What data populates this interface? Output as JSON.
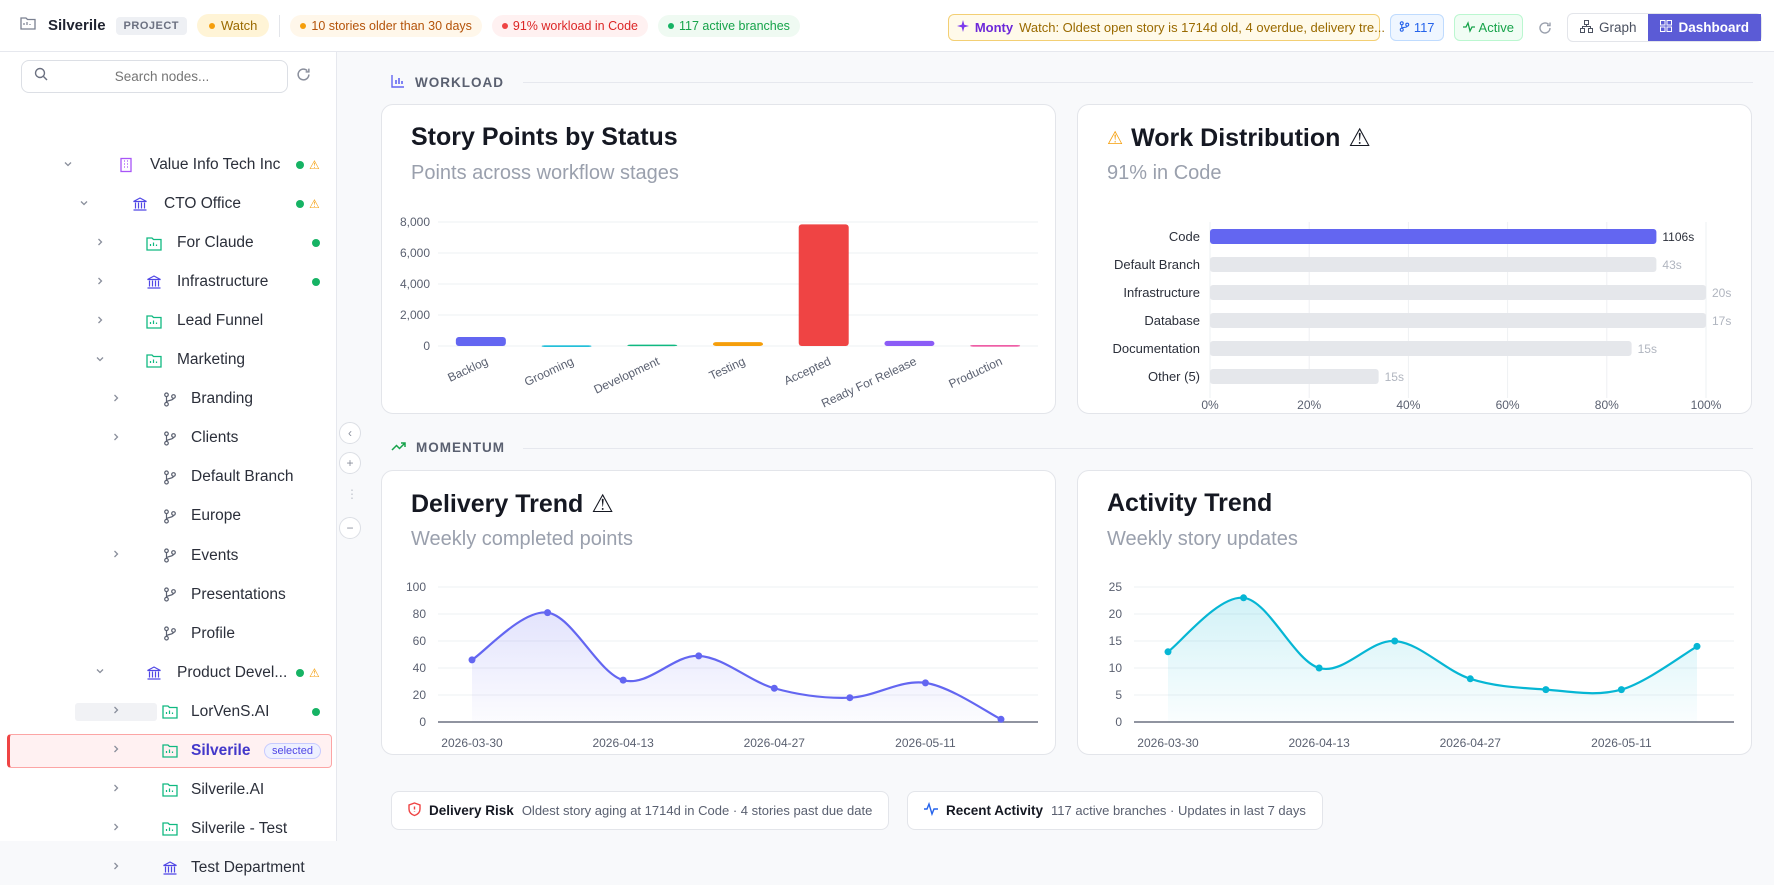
{
  "topbar": {
    "project_name": "Silverile",
    "project_badge": "PROJECT",
    "watch_label": "Watch",
    "alerts": [
      {
        "text": "10 stories older than 30 days"
      },
      {
        "text": "91% workload in Code"
      },
      {
        "text": "117 active branches"
      }
    ],
    "monty_name": "Monty",
    "monty_text": "Watch: Oldest open story is 1714d old, 4 overdue, delivery tre...",
    "branch_count": "117",
    "status": "Active",
    "graph_label": "Graph",
    "dashboard_label": "Dashboard"
  },
  "sidebar": {
    "search_placeholder": "Search nodes...",
    "nodes": [
      {
        "label": "Value Info Tech Inc",
        "level": 0,
        "chev": "down",
        "icon": "building-icon",
        "status": "green-warn"
      },
      {
        "label": "CTO Office",
        "level": 1,
        "chev": "down",
        "icon": "bank-icon",
        "status": "green-warn"
      },
      {
        "label": "For Claude",
        "level": 2,
        "chev": "right",
        "icon": "project-icon",
        "status": "green"
      },
      {
        "label": "Infrastructure",
        "level": 2,
        "chev": "right",
        "icon": "bank-icon",
        "status": "green"
      },
      {
        "label": "Lead Funnel",
        "level": 2,
        "chev": "right",
        "icon": "project-icon",
        "status": ""
      },
      {
        "label": "Marketing",
        "level": 2,
        "chev": "down",
        "icon": "project-icon",
        "status": ""
      },
      {
        "label": "Branding",
        "level": 3,
        "chev": "right",
        "icon": "branch-icon",
        "status": ""
      },
      {
        "label": "Clients",
        "level": 3,
        "chev": "right",
        "icon": "branch-icon",
        "status": ""
      },
      {
        "label": "Default Branch",
        "level": 3,
        "chev": "",
        "icon": "branch-icon",
        "status": ""
      },
      {
        "label": "Europe",
        "level": 3,
        "chev": "",
        "icon": "branch-icon",
        "status": ""
      },
      {
        "label": "Events",
        "level": 3,
        "chev": "right",
        "icon": "branch-icon",
        "status": ""
      },
      {
        "label": "Presentations",
        "level": 3,
        "chev": "",
        "icon": "branch-icon",
        "status": ""
      },
      {
        "label": "Profile",
        "level": 3,
        "chev": "",
        "icon": "branch-icon",
        "status": ""
      },
      {
        "label": "Product Devel...",
        "level": 2,
        "chev": "down",
        "icon": "bank-icon",
        "status": "green-warn"
      },
      {
        "label": "LorVenS.AI",
        "level": 3,
        "chev": "right",
        "icon": "project-icon",
        "status": "green"
      },
      {
        "label": "Silverile",
        "level": 3,
        "chev": "right",
        "icon": "project-icon",
        "status": "",
        "selected": true,
        "badge": "selected"
      },
      {
        "label": "Silverile.AI",
        "level": 3,
        "chev": "right",
        "icon": "project-icon",
        "status": ""
      },
      {
        "label": "Silverile - Test",
        "level": 3,
        "chev": "right",
        "icon": "project-icon",
        "status": ""
      },
      {
        "label": "Test Department",
        "level": 3,
        "chev": "right",
        "icon": "bank-icon",
        "status": ""
      }
    ]
  },
  "sections": {
    "workload": "WORKLOAD",
    "momentum": "MOMENTUM"
  },
  "cards": {
    "story_points": {
      "title": "Story Points by Status",
      "subtitle": "Points across workflow stages"
    },
    "work_distribution": {
      "title": "Work Distribution",
      "subtitle": "91% in Code"
    },
    "delivery_trend": {
      "title": "Delivery Trend",
      "subtitle": "Weekly completed points"
    },
    "activity_trend": {
      "title": "Activity Trend",
      "subtitle": "Weekly story updates"
    }
  },
  "chart_data": [
    {
      "type": "bar",
      "categories": [
        "Backlog",
        "Grooming",
        "Development",
        "Testing",
        "Accepted",
        "Ready For Release",
        "Production"
      ],
      "values": [
        580,
        40,
        90,
        250,
        7850,
        330,
        60
      ],
      "colors": [
        "#6366f1",
        "#06b6d4",
        "#10b981",
        "#f59e0b",
        "#ef4444",
        "#8b5cf6",
        "#ec4899"
      ],
      "yticks": [
        "0",
        "2,000",
        "4,000",
        "6,000",
        "8,000"
      ],
      "ylim": [
        0,
        8000
      ]
    },
    {
      "type": "bar",
      "orientation": "horizontal",
      "categories": [
        "Code",
        "Default Branch",
        "Infrastructure",
        "Database",
        "Documentation",
        "Other (5)"
      ],
      "values": [
        90,
        90,
        100,
        100,
        85,
        34
      ],
      "labels": [
        "1106s",
        "43s",
        "20s",
        "17s",
        "15s",
        "15s"
      ],
      "xticks": [
        "0%",
        "20%",
        "40%",
        "60%",
        "80%",
        "100%"
      ],
      "xlim": [
        0,
        100
      ]
    },
    {
      "type": "area",
      "x": [
        "2026-03-30",
        "2026-04-06",
        "2026-04-13",
        "2026-04-20",
        "2026-04-27",
        "2026-05-04",
        "2026-05-11",
        "2026-05-18"
      ],
      "values": [
        46,
        81,
        31,
        49,
        25,
        18,
        29,
        2
      ],
      "xticks": [
        "2026-03-30",
        "2026-04-13",
        "2026-04-27",
        "2026-05-11"
      ],
      "yticks": [
        "0",
        "20",
        "40",
        "60",
        "80",
        "100"
      ],
      "ylim": [
        0,
        100
      ],
      "color": "#6366f1"
    },
    {
      "type": "area",
      "x": [
        "2026-03-30",
        "2026-04-06",
        "2026-04-13",
        "2026-04-20",
        "2026-04-27",
        "2026-05-04",
        "2026-05-11",
        "2026-05-18"
      ],
      "values": [
        13,
        23,
        10,
        15,
        8,
        6,
        6,
        14
      ],
      "xticks": [
        "2026-03-30",
        "2026-04-13",
        "2026-04-27",
        "2026-05-11"
      ],
      "yticks": [
        "0",
        "5",
        "10",
        "15",
        "20",
        "25"
      ],
      "ylim": [
        0,
        25
      ],
      "color": "#06b6d4"
    }
  ],
  "footer": {
    "risk_title": "Delivery Risk",
    "risk_text": "Oldest story aging at 1714d in Code · 4 stories past due date",
    "activity_title": "Recent Activity",
    "activity_text": "117 active branches · Updates in last 7 days"
  }
}
